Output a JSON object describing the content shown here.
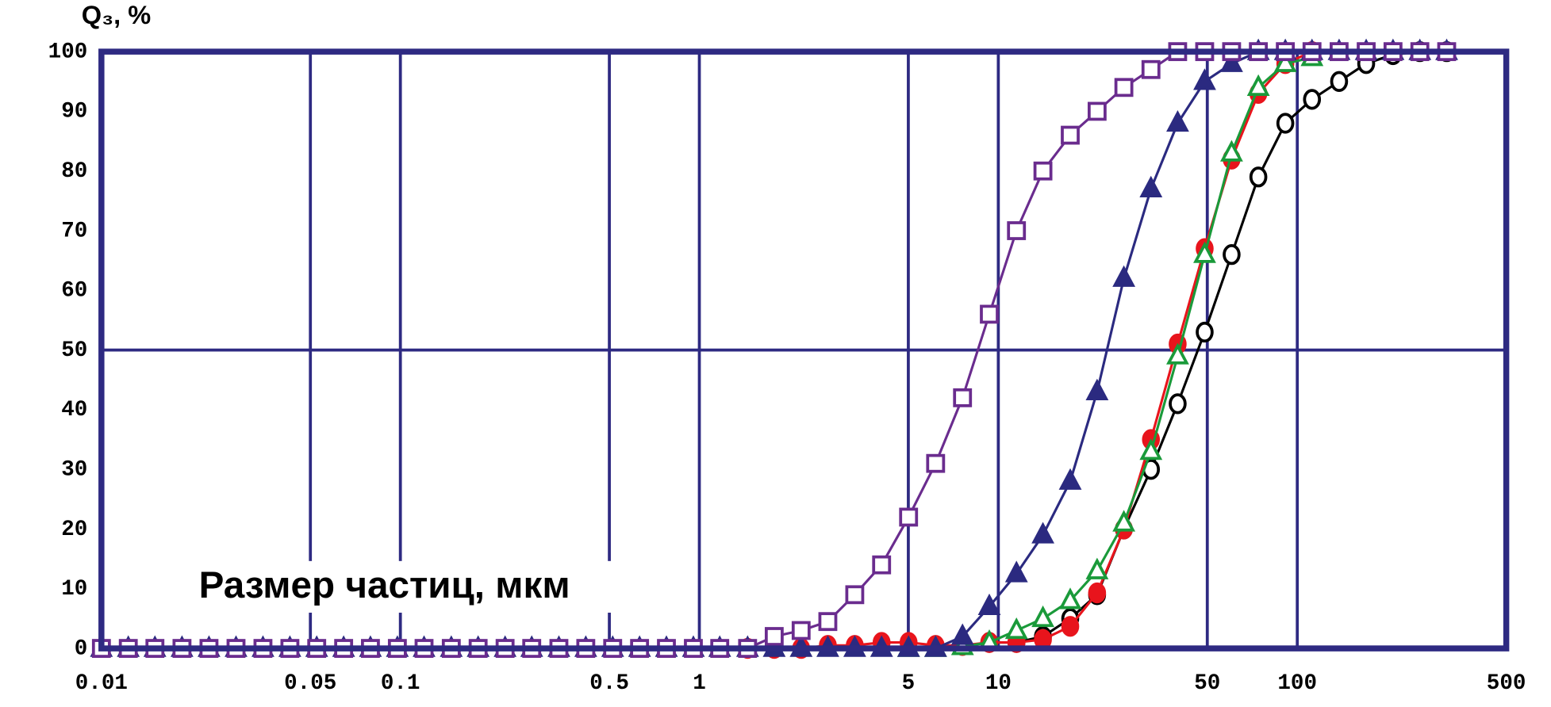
{
  "chart_data": {
    "type": "line",
    "ylabel": "Q₃, %",
    "xlabel": "Размер частиц, мкм",
    "xscale": "log",
    "xlim": [
      0.01,
      500
    ],
    "xticks": [
      0.01,
      0.05,
      0.1,
      0.5,
      1,
      5,
      10,
      50,
      100,
      500
    ],
    "ylim": [
      0,
      100
    ],
    "yticks": [
      0,
      10,
      20,
      30,
      40,
      50,
      60,
      70,
      80,
      90,
      100
    ],
    "y_grid_lines": [
      50
    ],
    "axis_color": "#2e2a82",
    "x": [
      0.01,
      0.0123,
      0.0151,
      0.0186,
      0.0229,
      0.0282,
      0.0347,
      0.0427,
      0.0525,
      0.0646,
      0.0794,
      0.0977,
      0.12,
      0.148,
      0.182,
      0.224,
      0.275,
      0.339,
      0.417,
      0.513,
      0.631,
      0.776,
      0.955,
      1.17,
      1.45,
      1.78,
      2.19,
      2.69,
      3.31,
      4.07,
      5.01,
      6.17,
      7.59,
      9.33,
      11.5,
      14.1,
      17.4,
      21.4,
      26.3,
      32.4,
      39.8,
      49,
      60.3,
      74.1,
      91.2,
      112,
      138,
      170,
      209,
      257,
      316
    ],
    "series": [
      {
        "color": "#000000",
        "marker": "circle",
        "filled": false,
        "values": [
          null,
          null,
          null,
          null,
          null,
          null,
          null,
          null,
          null,
          null,
          null,
          null,
          null,
          null,
          null,
          null,
          null,
          null,
          null,
          null,
          null,
          null,
          null,
          null,
          null,
          null,
          null,
          null,
          null,
          null,
          null,
          null,
          null,
          1,
          1,
          2,
          5,
          9,
          20,
          30,
          41,
          53,
          66,
          79,
          88,
          92,
          95,
          98,
          99.5,
          100,
          100
        ]
      },
      {
        "color": "#e8141c",
        "marker": "circle",
        "filled": true,
        "values": [
          null,
          null,
          null,
          null,
          null,
          null,
          null,
          null,
          null,
          null,
          null,
          null,
          null,
          null,
          null,
          null,
          null,
          null,
          null,
          null,
          null,
          null,
          null,
          null,
          0,
          0,
          0,
          0.5,
          0.5,
          1,
          1,
          0.5,
          0.5,
          1,
          1,
          1.5,
          3.7,
          9.3,
          20,
          35,
          51,
          67,
          82,
          93,
          98,
          100,
          null,
          null,
          null,
          null,
          null
        ]
      },
      {
        "color": "#1a9a3a",
        "marker": "triangle",
        "filled": false,
        "values": [
          null,
          null,
          null,
          null,
          null,
          null,
          null,
          null,
          null,
          null,
          null,
          null,
          null,
          null,
          null,
          null,
          null,
          null,
          null,
          null,
          null,
          null,
          null,
          null,
          null,
          null,
          null,
          null,
          null,
          null,
          0,
          0,
          0.3,
          1,
          3,
          5,
          8,
          13,
          21,
          33,
          49,
          66,
          83,
          94,
          98,
          99,
          null,
          null,
          null,
          null,
          null
        ]
      },
      {
        "color": "#2b2a80",
        "marker": "triangle",
        "filled": true,
        "values": [
          0,
          0,
          0,
          0,
          0,
          0,
          0,
          0,
          0,
          0,
          0,
          0,
          0,
          0,
          0,
          0,
          0,
          0,
          0,
          0,
          0,
          0,
          0,
          0,
          0,
          0,
          0,
          0,
          0,
          0,
          0,
          0,
          2,
          7,
          12.5,
          19,
          28,
          43,
          62,
          77,
          88,
          95,
          98,
          100,
          100,
          100,
          100,
          100,
          100,
          100,
          100
        ]
      },
      {
        "color": "#6a2c8e",
        "marker": "square",
        "filled": false,
        "values": [
          0,
          0,
          0,
          0,
          0,
          0,
          0,
          0,
          0,
          0,
          0,
          0,
          0,
          0,
          0,
          0,
          0,
          0,
          0,
          0,
          0,
          0,
          0,
          0,
          0,
          2,
          3,
          4.5,
          9,
          14,
          22,
          31,
          42,
          56,
          70,
          80,
          86,
          90,
          94,
          97,
          100,
          100,
          100,
          100,
          100,
          100,
          100,
          100,
          100,
          100,
          100
        ]
      }
    ]
  }
}
